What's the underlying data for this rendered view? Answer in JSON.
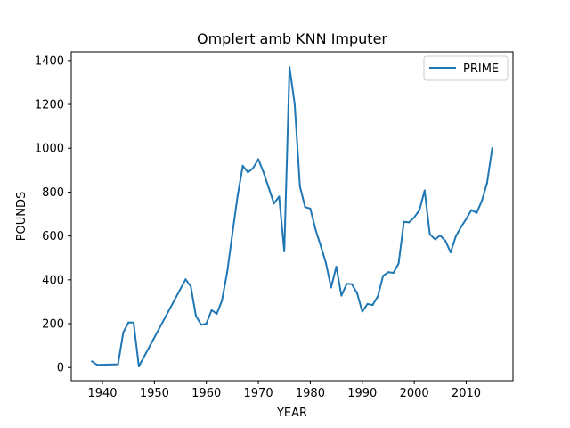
{
  "chart_data": {
    "type": "line",
    "title": "Omplert amb KNN Imputer",
    "xlabel": "YEAR",
    "ylabel": "POUNDS",
    "xlim": [
      1934,
      2019
    ],
    "ylim": [
      -60,
      1440
    ],
    "xticks": [
      1940,
      1950,
      1960,
      1970,
      1980,
      1990,
      2000,
      2010
    ],
    "yticks": [
      0,
      200,
      400,
      600,
      800,
      1000,
      1200,
      1400
    ],
    "grid": false,
    "legend": "top-right",
    "series": [
      {
        "name": "PRIME",
        "color": "#1f77b4",
        "x": [
          1938,
          1939,
          1943,
          1944,
          1945,
          1946,
          1947,
          1956,
          1957,
          1958,
          1959,
          1960,
          1961,
          1962,
          1963,
          1964,
          1965,
          1966,
          1967,
          1968,
          1969,
          1970,
          1971,
          1972,
          1973,
          1974,
          1975,
          1976,
          1977,
          1978,
          1979,
          1980,
          1981,
          1982,
          1983,
          1984,
          1985,
          1986,
          1987,
          1988,
          1989,
          1990,
          1991,
          1992,
          1993,
          1994,
          1995,
          1996,
          1997,
          1998,
          1999,
          2000,
          2001,
          2002,
          2003,
          2004,
          2005,
          2006,
          2007,
          2008,
          2009,
          2010,
          2011,
          2012,
          2013,
          2014,
          2015
        ],
        "values": [
          28,
          12,
          15,
          160,
          205,
          205,
          5,
          402,
          370,
          235,
          195,
          200,
          262,
          245,
          305,
          435,
          610,
          780,
          920,
          890,
          910,
          950,
          890,
          820,
          748,
          780,
          530,
          1370,
          1200,
          825,
          732,
          725,
          630,
          555,
          478,
          365,
          460,
          328,
          382,
          380,
          340,
          255,
          290,
          285,
          325,
          418,
          435,
          432,
          475,
          665,
          662,
          685,
          718,
          808,
          608,
          585,
          602,
          578,
          525,
          598,
          640,
          678,
          718,
          705,
          760,
          840,
          1000
        ]
      }
    ]
  }
}
